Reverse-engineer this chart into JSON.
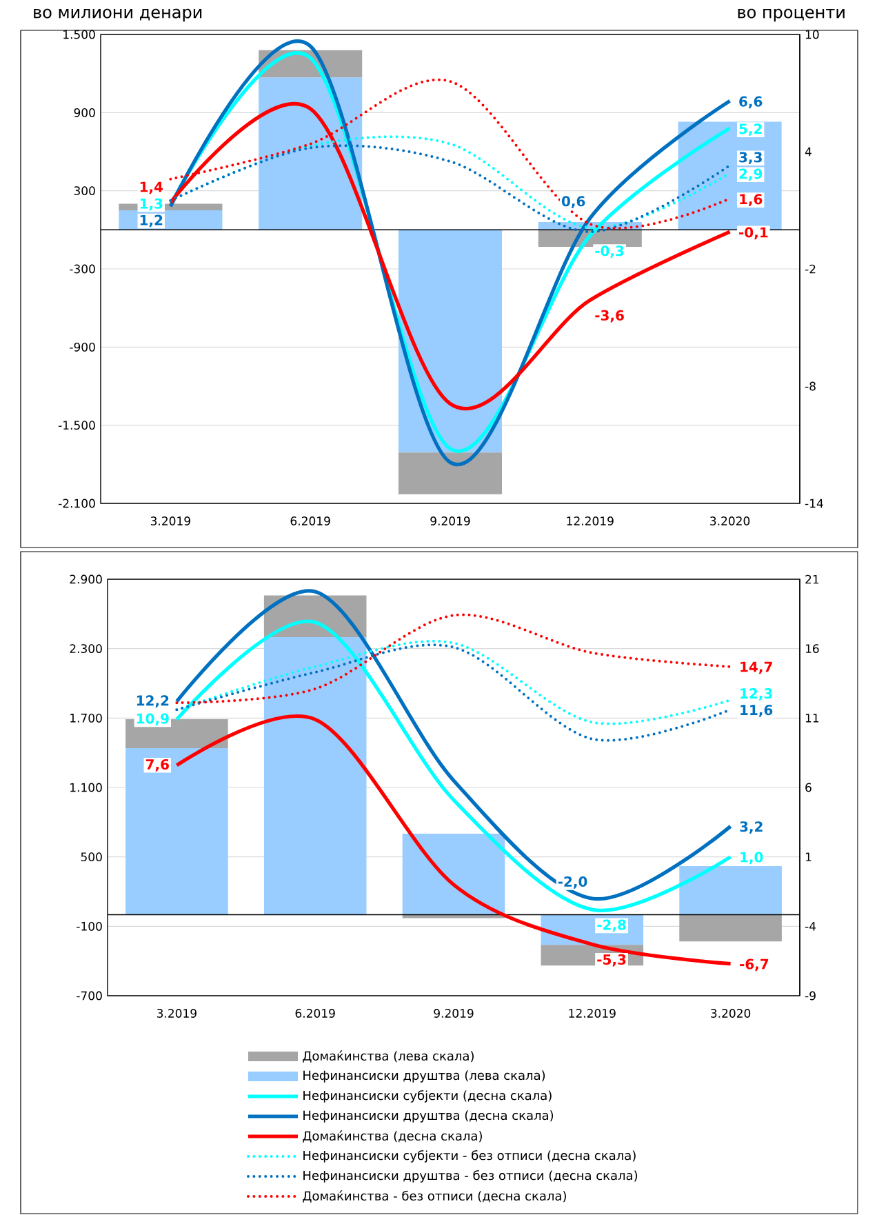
{
  "chart_data": [
    {
      "type": "bar",
      "ylabel": "во милиони денари",
      "y2label": "во проценти",
      "stacked": true,
      "grid": "y",
      "categories": [
        "3.2019",
        "6.2019",
        "9.2019",
        "12.2019",
        "3.2020"
      ],
      "ylim": [
        -2100,
        1500
      ],
      "yticks": [
        {
          "value": -2100,
          "label": "-2.100"
        },
        {
          "value": -1500,
          "label": "-1.500"
        },
        -900,
        -300,
        300,
        900,
        {
          "value": 1500,
          "label": "1.500"
        }
      ],
      "y2lim": [
        -14,
        10
      ],
      "y2ticks": [
        -14,
        -8,
        -2,
        4,
        10
      ],
      "series": [
        {
          "color": "#99ccff",
          "values": [
            150,
            1170,
            -1710,
            60,
            830
          ]
        },
        {
          "color": "#a6a6a6",
          "values": [
            50,
            210,
            -320,
            -130,
            0
          ]
        },
        {
          "type": "line",
          "axis": "y2",
          "line_style": "solid",
          "color": "#00ffff",
          "values": [
            1.3,
            8.8,
            -11.2,
            -0.3,
            5.2
          ],
          "value_labels": [
            "1,3",
            null,
            null,
            "-0,3",
            "5,2"
          ]
        },
        {
          "type": "line",
          "axis": "y2",
          "line_style": "solid",
          "color": "#0070c0",
          "values": [
            1.2,
            9.4,
            -11.9,
            0.6,
            6.6
          ],
          "value_labels": [
            "1,2",
            null,
            null,
            "0,6",
            "6,6"
          ]
        },
        {
          "type": "line",
          "axis": "y2",
          "line_style": "solid",
          "color": "#ff0000",
          "values": [
            1.4,
            6.2,
            -8.9,
            -3.6,
            -0.1
          ],
          "value_labels": [
            "1,4",
            null,
            null,
            "-3,6",
            "-0,1"
          ]
        },
        {
          "type": "line",
          "axis": "y2",
          "line_style": "dotted",
          "color": "#00ffff",
          "values": [
            1.5,
            4.3,
            4.4,
            0.1,
            2.9
          ],
          "value_labels": [
            null,
            null,
            null,
            null,
            "2,9"
          ]
        },
        {
          "type": "line",
          "axis": "y2",
          "line_style": "dotted",
          "color": "#0070c0",
          "values": [
            1.5,
            4.2,
            3.5,
            -0.1,
            3.3
          ],
          "value_labels": [
            null,
            null,
            null,
            null,
            "3,3"
          ]
        },
        {
          "type": "line",
          "axis": "y2",
          "line_style": "dotted",
          "color": "#ff0000",
          "values": [
            2.6,
            4.4,
            7.6,
            0.3,
            1.6
          ],
          "value_labels": [
            null,
            null,
            null,
            null,
            "1,6"
          ]
        }
      ]
    },
    {
      "type": "bar",
      "stacked": true,
      "grid": "y",
      "legend": "bottom",
      "categories": [
        "3.2019",
        "6.2019",
        "9.2019",
        "12.2019",
        "3.2020"
      ],
      "ylim": [
        -700,
        2900
      ],
      "yticks": [
        -700,
        -100,
        500,
        {
          "value": 1100,
          "label": "1.100"
        },
        {
          "value": 1700,
          "label": "1.700"
        },
        {
          "value": 2300,
          "label": "2.300"
        },
        {
          "value": 2900,
          "label": "2.900"
        }
      ],
      "y2lim": [
        -9,
        21
      ],
      "y2ticks": [
        -9,
        -4,
        1,
        6,
        11,
        16,
        21
      ],
      "series": [
        {
          "name": "Нефинансиски друштва (лева скала)",
          "color": "#99ccff",
          "values": [
            1440,
            2400,
            700,
            -260,
            420
          ]
        },
        {
          "name": "Домаќинства (лева скала)",
          "color": "#a6a6a6",
          "values": [
            250,
            360,
            -30,
            -180,
            -230
          ]
        },
        {
          "type": "line",
          "axis": "y2",
          "line_style": "solid",
          "name": "Нефинансиски субјекти (десна скала)",
          "color": "#00ffff",
          "values": [
            10.9,
            17.9,
            5.1,
            -2.8,
            1.0
          ],
          "value_labels": [
            "10,9",
            null,
            null,
            "-2,8",
            "1,0"
          ]
        },
        {
          "type": "line",
          "axis": "y2",
          "line_style": "solid",
          "name": "Нефинансиски друштва (десна скала)",
          "color": "#0070c0",
          "values": [
            12.2,
            20.1,
            6.5,
            -2.0,
            3.2
          ],
          "value_labels": [
            "12,2",
            null,
            null,
            "-2,0",
            "3,2"
          ]
        },
        {
          "type": "line",
          "axis": "y2",
          "line_style": "solid",
          "name": "Домаќинства (десна скала)",
          "color": "#ff0000",
          "values": [
            7.6,
            10.9,
            -1.0,
            -5.3,
            -6.7
          ],
          "value_labels": [
            "7,6",
            null,
            null,
            "-5,3",
            "-6,7"
          ]
        },
        {
          "type": "line",
          "axis": "y2",
          "line_style": "dotted",
          "name": "Нефинансиски субјекти - без отписи (десна скала)",
          "color": "#00ffff",
          "values": [
            11.6,
            14.7,
            16.4,
            10.7,
            12.3
          ],
          "value_labels": [
            null,
            null,
            null,
            null,
            "12,3"
          ]
        },
        {
          "type": "line",
          "axis": "y2",
          "line_style": "dotted",
          "name": "Нефинансиски друштва - без отписи (десна скала)",
          "color": "#0070c0",
          "values": [
            11.6,
            14.3,
            16.1,
            9.5,
            11.6
          ],
          "value_labels": [
            null,
            null,
            null,
            null,
            "11,6"
          ]
        },
        {
          "type": "line",
          "axis": "y2",
          "line_style": "dotted",
          "name": "Домаќинства - без отписи (десна скала)",
          "color": "#ff0000",
          "values": [
            12.1,
            13.1,
            18.4,
            15.7,
            14.7
          ],
          "value_labels": [
            null,
            null,
            null,
            null,
            "14,7"
          ]
        }
      ]
    }
  ]
}
